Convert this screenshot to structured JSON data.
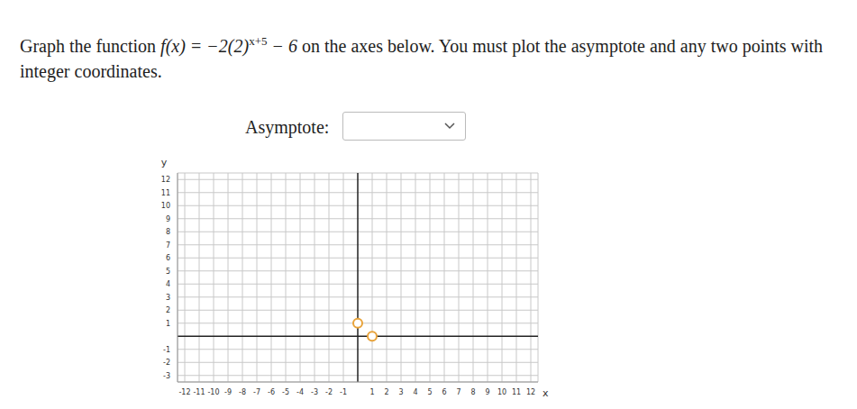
{
  "question": {
    "before": "Graph the function ",
    "formula_base": "f(x) = −2(2)",
    "formula_exponent": "x+5",
    "formula_rest": " − 6",
    "after": " on the axes below. You must plot the asymptote and any two points with integer coordinates."
  },
  "asymptote_label": "Asymptote:",
  "chart_data": {
    "type": "scatter",
    "x_label": "x",
    "y_label": "y",
    "x": [
      0,
      1
    ],
    "values": [
      1,
      0
    ],
    "color": "#e8a33a",
    "marker": "circle",
    "xlim": [
      -12.5,
      12.5
    ],
    "ylim": [
      -3.5,
      12.5
    ],
    "xticks": [
      -12,
      -11,
      -10,
      -9,
      -8,
      -7,
      -6,
      -5,
      -4,
      -3,
      -2,
      -1,
      1,
      2,
      3,
      4,
      5,
      6,
      7,
      8,
      9,
      10,
      11,
      12
    ],
    "yticks": [
      -3,
      -2,
      -1,
      1,
      2,
      3,
      4,
      5,
      6,
      7,
      8,
      9,
      10,
      11,
      12
    ],
    "grid": true
  }
}
